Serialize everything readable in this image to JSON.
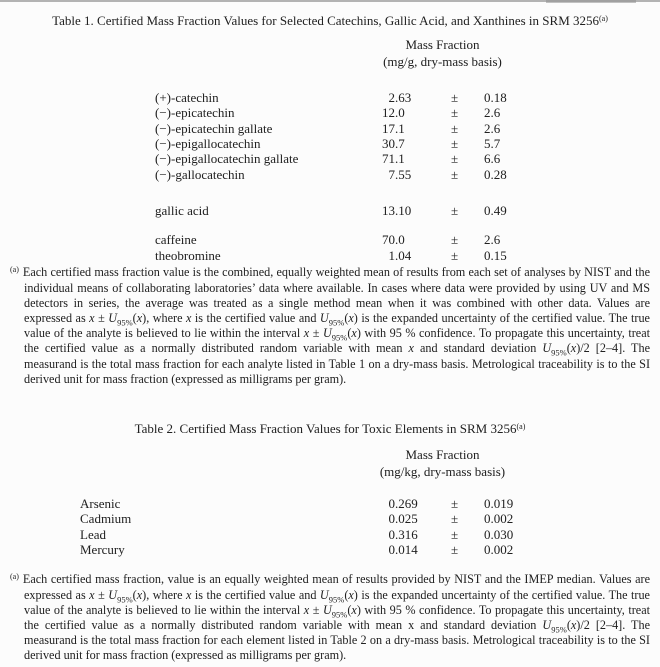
{
  "symbols": {
    "plus_minus": "±"
  },
  "colors": {
    "background": "#fcfcfc",
    "text": "#202020",
    "scan_edge": "#b3b3b3"
  },
  "table1": {
    "title": "Table 1.  Certified Mass Fraction Values for Selected Catechins, Gallic Acid, and Xanthines in SRM 3256",
    "title_footnote_marker": "(a)",
    "header": {
      "line1": "Mass Fraction",
      "line2": "(mg/g, dry-mass basis)"
    },
    "groups": {
      "catechins": [
        {
          "name": "(+)-catechin",
          "value": "2.63",
          "uncertainty": "0.18"
        },
        {
          "name": "(−)-epicatechin",
          "value": "12.0",
          "uncertainty": "2.6"
        },
        {
          "name": "(−)-epicatechin gallate",
          "value": "17.1",
          "uncertainty": "2.6"
        },
        {
          "name": "(−)-epigallocatechin",
          "value": "30.7",
          "uncertainty": "5.7"
        },
        {
          "name": "(−)-epigallocatechin gallate",
          "value": "71.1",
          "uncertainty": "6.6"
        },
        {
          "name": "(−)-gallocatechin",
          "value": "7.55",
          "uncertainty": "0.28"
        }
      ],
      "gallic_acid": [
        {
          "name": "gallic acid",
          "value": "13.10",
          "uncertainty": "0.49"
        }
      ],
      "xanthines": [
        {
          "name": "caffeine",
          "value": "70.0",
          "uncertainty": "2.6"
        },
        {
          "name": "theobromine",
          "value": "1.04",
          "uncertainty": "0.15"
        }
      ]
    },
    "footnote": {
      "marker": "(a)",
      "text": "Each certified mass fraction value is the combined, equally weighted mean of results from each set of analyses by NIST and the individual means of collaborating laboratories’ data where available.  In cases where data were provided by using UV and MS detectors in series, the average was treated as a single method mean when it was combined with other data.  Values are expressed as _x_ ± _U_~95%~(_x_), where _x_ is the certified value and _U_~95%~(_x_) is the expanded uncertainty of the certified value.  The true value of the analyte is believed to lie within the interval _x_ ± _U_~95%~(_x_) with 95 % confidence.  To propagate this uncertainty, treat the certified value as a normally distributed random variable with mean _x_ and standard deviation _U_~95%~(_x_)/2 [2–4].  The measurand is the total mass fraction for each analyte listed in Table 1 on a dry-mass basis.  Metrological traceability is to the SI derived unit for mass fraction (expressed as milligrams per gram)."
    }
  },
  "table2": {
    "title": "Table 2.  Certified Mass Fraction Values for Toxic Elements in SRM 3256",
    "title_footnote_marker": "(a)",
    "header": {
      "line1": "Mass Fraction",
      "line2": "(mg/kg, dry-mass basis)"
    },
    "groups": {
      "elements": [
        {
          "name": "Arsenic",
          "value": "0.269",
          "uncertainty": "0.019"
        },
        {
          "name": "Cadmium",
          "value": "0.025",
          "uncertainty": "0.002"
        },
        {
          "name": "Lead",
          "value": "0.316",
          "uncertainty": "0.030"
        },
        {
          "name": "Mercury",
          "value": "0.014",
          "uncertainty": "0.002"
        }
      ]
    },
    "footnote": {
      "marker": "(a)",
      "text": "Each certified mass fraction, value is an equally weighted mean of results provided by NIST and the IMEP median.  Values are expressed as _x_ ± _U_~95%~(_x_), where _x_ is the certified value and _U_~95%~(_x_) is the expanded uncertainty of the certified value.  The true value of the analyte is believed to lie within the interval _x_ ± _U_~95%~(_x_) with 95 % confidence.  To propagate this uncertainty, treat the certified value as a normally distributed random variable with mean x and standard deviation _U_~95%~(_x_)/2 [2–4].  The measurand is the total mass fraction for each element listed in Table 2 on a dry-mass basis.  Metrological traceability is to the SI derived unit for mass fraction (expressed as milligrams per gram)."
    }
  }
}
